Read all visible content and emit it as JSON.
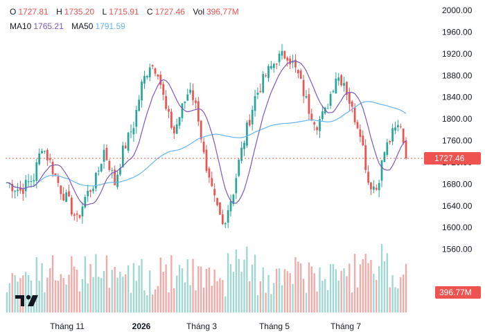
{
  "legend": {
    "open_label": "O",
    "open_value": "1727.81",
    "high_label": "H",
    "high_value": "1735.20",
    "low_label": "L",
    "low_value": "1715.91",
    "close_label": "C",
    "close_value": "1727.46",
    "vol_label": "Vol",
    "vol_value": "396,77M",
    "ma10_label": "MA10",
    "ma10_value": "1765.21",
    "ma50_label": "MA50",
    "ma50_value": "1791.59"
  },
  "colors": {
    "up": "#26a69a",
    "down": "#ef5350",
    "ma10": "#7e57c2",
    "ma50": "#64b5f6",
    "price_tag": "#ef5350",
    "axis_text": "#131722"
  },
  "logo_icon": "tradingview-logo-icon",
  "chart_data": {
    "type": "candlestick",
    "x_labels": [
      "Tháng 11",
      "2026",
      "Tháng 3",
      "Tháng 5",
      "Tháng 7"
    ],
    "y_ticks": [
      "2000.00",
      "1960.00",
      "1920.00",
      "1880.00",
      "1840.00",
      "1800.00",
      "1760.00",
      "1720.00",
      "1680.00",
      "1640.00",
      "1600.00",
      "1560.00"
    ],
    "ylim": [
      1520,
      2000
    ],
    "last_price": "1727.46",
    "last_volume": "396.77M",
    "price_keypoints": [
      [
        0,
        1683
      ],
      [
        5,
        1668
      ],
      [
        10,
        1693
      ],
      [
        13,
        1752
      ],
      [
        16,
        1720
      ],
      [
        20,
        1670
      ],
      [
        23,
        1645
      ],
      [
        26,
        1612
      ],
      [
        29,
        1655
      ],
      [
        33,
        1688
      ],
      [
        36,
        1742
      ],
      [
        38,
        1715
      ],
      [
        40,
        1682
      ],
      [
        43,
        1740
      ],
      [
        47,
        1790
      ],
      [
        50,
        1862
      ],
      [
        53,
        1902
      ],
      [
        56,
        1890
      ],
      [
        59,
        1815
      ],
      [
        62,
        1775
      ],
      [
        65,
        1820
      ],
      [
        68,
        1860
      ],
      [
        71,
        1805
      ],
      [
        74,
        1695
      ],
      [
        77,
        1650
      ],
      [
        80,
        1605
      ],
      [
        84,
        1668
      ],
      [
        86,
        1720
      ],
      [
        88,
        1762
      ],
      [
        92,
        1840
      ],
      [
        96,
        1880
      ],
      [
        100,
        1910
      ],
      [
        104,
        1920
      ],
      [
        108,
        1880
      ],
      [
        112,
        1818
      ],
      [
        115,
        1792
      ],
      [
        118,
        1812
      ],
      [
        122,
        1880
      ],
      [
        125,
        1870
      ],
      [
        128,
        1815
      ],
      [
        131,
        1780
      ],
      [
        134,
        1685
      ],
      [
        137,
        1672
      ],
      [
        140,
        1740
      ],
      [
        143,
        1772
      ],
      [
        146,
        1792
      ],
      [
        148,
        1727
      ]
    ],
    "candle_count": 149,
    "series": [
      {
        "type": "line",
        "name": "MA10"
      },
      {
        "type": "line",
        "name": "MA50"
      },
      {
        "type": "bar",
        "name": "Vol"
      }
    ]
  }
}
